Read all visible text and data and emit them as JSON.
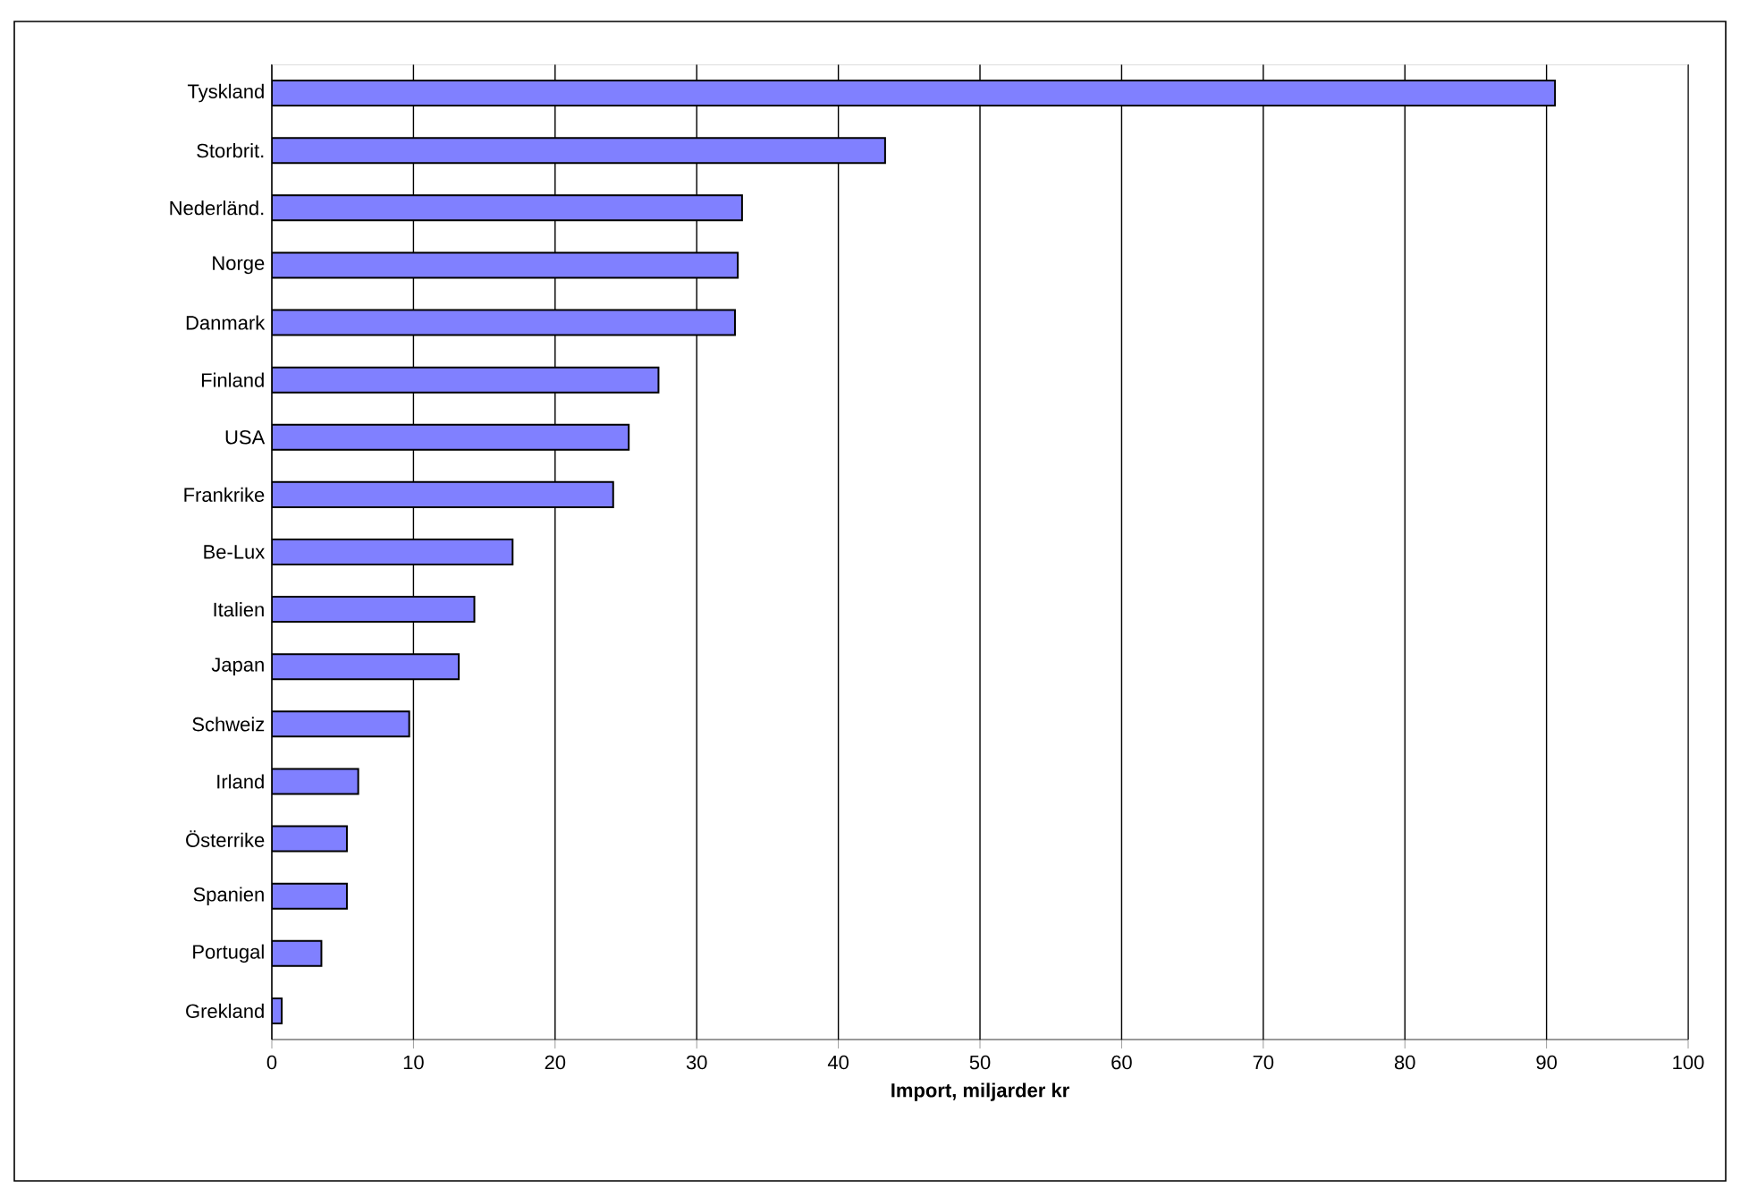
{
  "chart_data": {
    "type": "bar",
    "orientation": "horizontal",
    "xlabel": "Import, miljarder kr",
    "categories": [
      "Tyskland",
      "Storbrit.",
      "Nederländ.",
      "Norge",
      "Danmark",
      "Finland",
      "USA",
      "Frankrike",
      "Be-Lux",
      "Italien",
      "Japan",
      "Schweiz",
      "Irland",
      "Österrike",
      "Spanien",
      "Portugal",
      "Grekland"
    ],
    "values": [
      90.6,
      43.3,
      33.2,
      32.9,
      32.7,
      27.3,
      25.2,
      24.1,
      17.0,
      14.3,
      13.2,
      9.7,
      6.1,
      5.3,
      5.3,
      3.5,
      0.7
    ],
    "color": "#8080ff",
    "xlim": [
      0,
      100
    ],
    "xticks": [
      0,
      10,
      20,
      30,
      40,
      50,
      60,
      70,
      80,
      90,
      100
    ],
    "grid": "x"
  }
}
